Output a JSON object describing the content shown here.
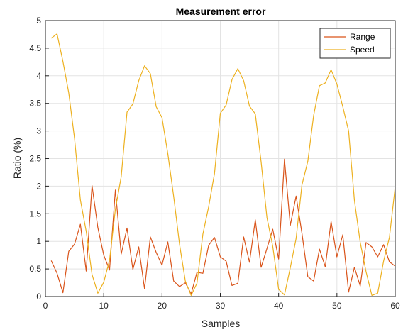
{
  "chart_data": {
    "type": "line",
    "title": "Measurement error",
    "xlabel": "Samples",
    "ylabel": "Ratio (%)",
    "xlim": [
      0,
      60
    ],
    "ylim": [
      0,
      5
    ],
    "xticks": [
      0,
      10,
      20,
      30,
      40,
      50,
      60
    ],
    "yticks": [
      0,
      0.5,
      1,
      1.5,
      2,
      2.5,
      3,
      3.5,
      4,
      4.5,
      5
    ],
    "grid": true,
    "legend_position": "top-right",
    "series": [
      {
        "name": "Range",
        "color": "#d95319",
        "x": [
          1,
          2,
          3,
          4,
          5,
          6,
          7,
          8,
          9,
          10,
          11,
          12,
          13,
          14,
          15,
          16,
          17,
          18,
          19,
          20,
          21,
          22,
          23,
          24,
          25,
          26,
          27,
          28,
          29,
          30,
          31,
          32,
          33,
          34,
          35,
          36,
          37,
          38,
          39,
          40,
          41,
          42,
          43,
          44,
          45,
          46,
          47,
          48,
          49,
          50,
          51,
          52,
          53,
          54,
          55,
          56,
          57,
          58,
          59,
          60
        ],
        "y": [
          0.65,
          0.42,
          0.07,
          0.82,
          0.95,
          1.31,
          0.46,
          2.01,
          1.25,
          0.75,
          0.48,
          1.93,
          0.77,
          1.24,
          0.49,
          0.9,
          0.14,
          1.08,
          0.8,
          0.57,
          0.99,
          0.28,
          0.18,
          0.25,
          0.05,
          0.44,
          0.42,
          0.93,
          1.07,
          0.72,
          0.64,
          0.2,
          0.24,
          1.08,
          0.62,
          1.39,
          0.53,
          0.87,
          1.22,
          0.68,
          2.49,
          1.29,
          1.82,
          1.15,
          0.36,
          0.28,
          0.86,
          0.54,
          1.36,
          0.72,
          1.12,
          0.08,
          0.53,
          0.19,
          0.98,
          0.9,
          0.72,
          0.94,
          0.63,
          0.55
        ]
      },
      {
        "name": "Speed",
        "color": "#edb120",
        "x": [
          1,
          2,
          3,
          4,
          5,
          6,
          7,
          8,
          9,
          10,
          11,
          12,
          13,
          14,
          15,
          16,
          17,
          18,
          19,
          20,
          21,
          22,
          23,
          24,
          25,
          26,
          27,
          28,
          29,
          30,
          31,
          32,
          33,
          34,
          35,
          36,
          37,
          38,
          39,
          40,
          41,
          42,
          43,
          44,
          45,
          46,
          47,
          48,
          49,
          50,
          51,
          52,
          53,
          54,
          55,
          56,
          57,
          58,
          59,
          60
        ],
        "y": [
          4.68,
          4.76,
          4.26,
          3.69,
          2.86,
          1.75,
          1.18,
          0.4,
          0.06,
          0.26,
          0.66,
          1.58,
          2.17,
          3.34,
          3.49,
          3.91,
          4.18,
          4.04,
          3.44,
          3.24,
          2.59,
          1.81,
          0.95,
          0.28,
          0.02,
          0.24,
          1.13,
          1.63,
          2.23,
          3.32,
          3.47,
          3.93,
          4.13,
          3.91,
          3.45,
          3.31,
          2.44,
          1.43,
          0.91,
          0.13,
          0.03,
          0.52,
          1.05,
          2.02,
          2.45,
          3.28,
          3.82,
          3.87,
          4.11,
          3.85,
          3.44,
          3.0,
          1.74,
          0.98,
          0.45,
          0.02,
          0.06,
          0.64,
          1.07,
          1.99
        ]
      }
    ]
  }
}
